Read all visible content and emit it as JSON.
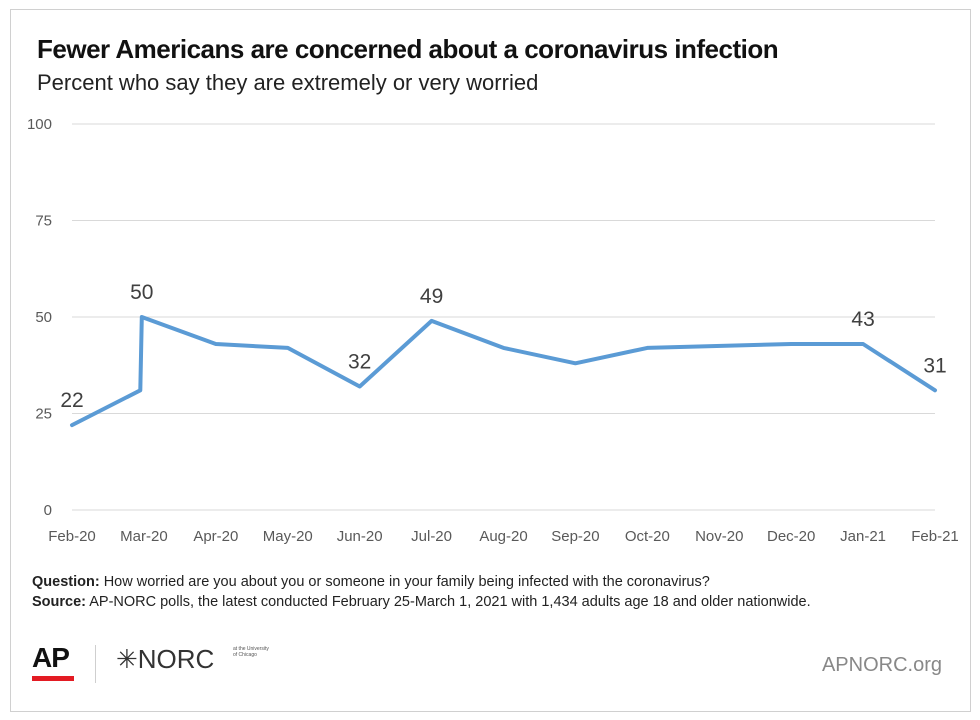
{
  "header": {
    "title": "Fewer Americans are concerned about a coronavirus infection",
    "subtitle": "Percent who say they are extremely or very worried"
  },
  "chart_data": {
    "type": "line",
    "title": "Fewer Americans are concerned about a coronavirus infection",
    "subtitle": "Percent who say they are extremely or very worried",
    "xlabel": "",
    "ylabel": "",
    "ylim": [
      0,
      100
    ],
    "yticks": [
      0,
      25,
      50,
      75,
      100
    ],
    "grid": true,
    "legend": "none",
    "line_color": "#5b9bd5",
    "x_tick_labels": [
      "Feb-20",
      "Mar-20",
      "Apr-20",
      "May-20",
      "Jun-20",
      "Jul-20",
      "Aug-20",
      "Sep-20",
      "Oct-20",
      "Nov-20",
      "Dec-20",
      "Jan-21",
      "Feb-21"
    ],
    "series": [
      {
        "points": [
          {
            "x": 0,
            "y": 22,
            "label": "22"
          },
          {
            "x": 0.95,
            "y": 31
          },
          {
            "x": 0.97,
            "y": 50,
            "label": "50"
          },
          {
            "x": 2,
            "y": 43
          },
          {
            "x": 3,
            "y": 42
          },
          {
            "x": 4,
            "y": 32,
            "label": "32"
          },
          {
            "x": 5,
            "y": 49,
            "label": "49"
          },
          {
            "x": 6,
            "y": 42
          },
          {
            "x": 7,
            "y": 38
          },
          {
            "x": 8,
            "y": 42
          },
          {
            "x": 10,
            "y": 43
          },
          {
            "x": 11,
            "y": 43,
            "label": "43"
          },
          {
            "x": 12,
            "y": 31,
            "label": "31"
          }
        ]
      }
    ]
  },
  "notes": {
    "question_label": "Question:",
    "question_text": " How worried are you about you or someone in your family being infected with the coronavirus?",
    "source_label": "Source:",
    "source_text": "  AP-NORC polls, the latest conducted February 25-March 1, 2021 with 1,434 adults age 18 and older nationwide."
  },
  "footer": {
    "ap_logo": "AP",
    "norc_logo": "✳NORC",
    "norc_small": "at the University of Chicago",
    "site": "APNORC.org"
  }
}
